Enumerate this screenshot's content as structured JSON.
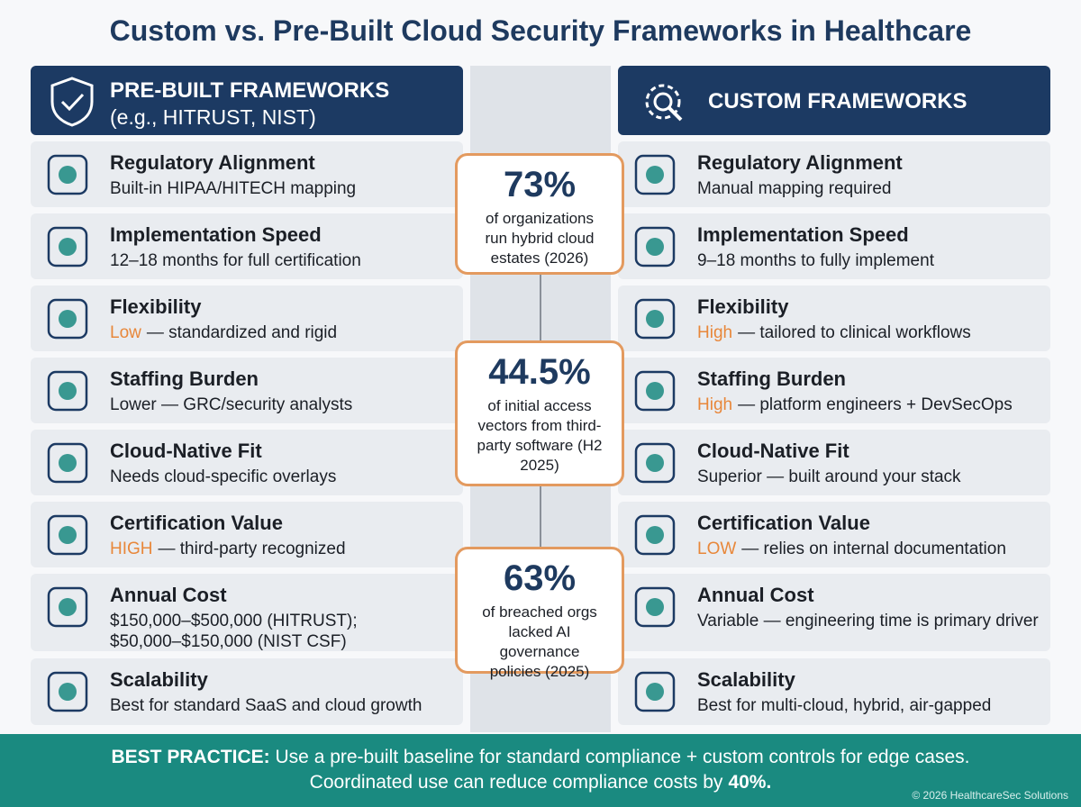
{
  "title": "Custom vs. Pre-Built Cloud Security Frameworks in Healthcare",
  "left": {
    "title": "PRE-BUILT FRAMEWORKS",
    "subtitle": "(e.g., HITRUST, NIST)",
    "rows": [
      {
        "heading": "Regulatory Alignment",
        "text": "Built-in HIPAA/HITECH mapping"
      },
      {
        "heading": "Implementation Speed",
        "text": "12–18 months for full certification"
      },
      {
        "heading": "Flexibility",
        "highlight": "Low",
        "text": "— standardized and rigid"
      },
      {
        "heading": "Staffing Burden",
        "text": "Lower — GRC/security analysts"
      },
      {
        "heading": "Cloud-Native Fit",
        "text": "Needs cloud-specific overlays"
      },
      {
        "heading": "Certification Value",
        "highlight": "HIGH",
        "text": "— third-party recognized"
      },
      {
        "heading": "Annual Cost",
        "lines": [
          "$150,000–$500,000 (HITRUST);",
          "$50,000–$150,000 (NIST CSF)"
        ]
      },
      {
        "heading": "Scalability",
        "text": "Best for standard SaaS and cloud growth"
      }
    ]
  },
  "right": {
    "title": "CUSTOM FRAMEWORKS",
    "rows": [
      {
        "heading": "Regulatory Alignment",
        "text": "Manual mapping required"
      },
      {
        "heading": "Implementation Speed",
        "text": "9–18 months to fully implement"
      },
      {
        "heading": "Flexibility",
        "highlight": "High",
        "text": "— tailored to clinical workflows"
      },
      {
        "heading": "Staffing Burden",
        "highlight": "High",
        "text": "— platform engineers + DevSecOps"
      },
      {
        "heading": "Cloud-Native Fit",
        "text": "Superior — built around your stack"
      },
      {
        "heading": "Certification Value",
        "highlight": "LOW",
        "text": "— relies on internal documentation"
      },
      {
        "heading": "Annual Cost",
        "text": "Variable — engineering time is primary driver"
      },
      {
        "heading": "Scalability",
        "text": "Best for multi-cloud, hybrid, air-gapped"
      }
    ]
  },
  "stats": [
    {
      "value": "73%",
      "text": "of organizations run hybrid cloud estates (2026)"
    },
    {
      "value": "44.5%",
      "text": "of initial access vectors from third-party software (H2 2025)"
    },
    {
      "value": "63%",
      "text": "of breached orgs lacked AI governance policies (2025)"
    }
  ],
  "footer": {
    "label": "BEST PRACTICE:",
    "text": "Use a pre-built baseline for standard compliance + custom controls for edge cases.",
    "text2": "Coordinated use can reduce compliance costs by",
    "emphasis": "40%."
  },
  "copyright": "© 2026 HealthcareSec Solutions"
}
